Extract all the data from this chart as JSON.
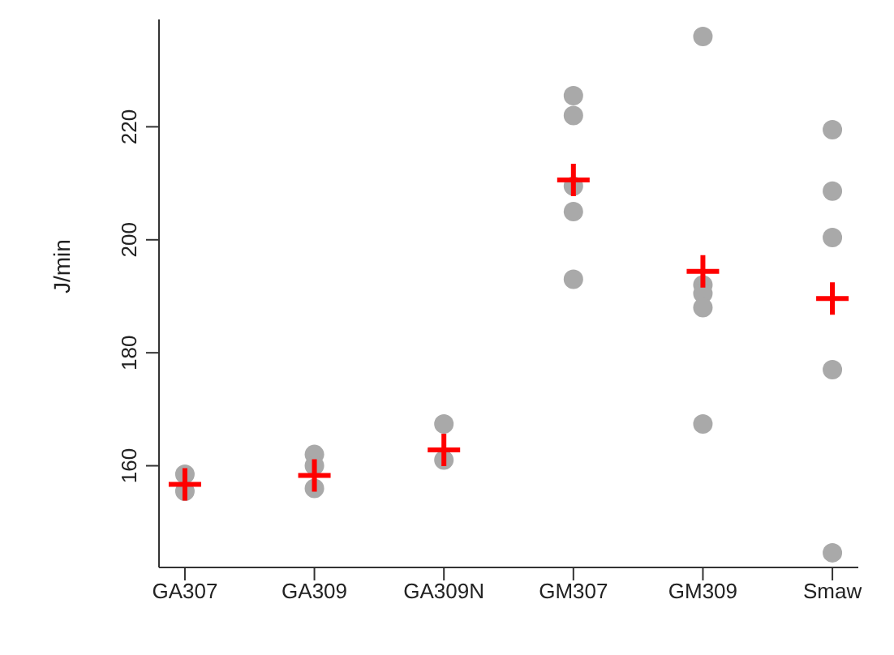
{
  "chart_data": {
    "type": "scatter",
    "ylabel": "J/min",
    "categories": [
      "GA307",
      "GA309",
      "GA309N",
      "GM307",
      "GM309",
      "Smaw"
    ],
    "ylim": [
      142,
      239
    ],
    "yticks": [
      160,
      180,
      200,
      220
    ],
    "grid": false,
    "legend": false,
    "series": [
      {
        "marker": "circle",
        "color": "#a9a9a9",
        "x": [
          "GA307",
          "GA307",
          "GA309",
          "GA309",
          "GA309",
          "GA309N",
          "GA309N",
          "GM307",
          "GM307",
          "GM307",
          "GM307",
          "GM307",
          "GM309",
          "GM309",
          "GM309",
          "GM309",
          "GM309",
          "Smaw",
          "Smaw",
          "Smaw",
          "Smaw",
          "Smaw"
        ],
        "values": [
          158.5,
          155.5,
          162,
          160,
          156,
          167.4,
          161,
          225.5,
          222,
          209.5,
          205,
          193,
          236,
          192,
          190.5,
          188,
          167.4,
          219.5,
          208.6,
          200.4,
          177,
          144.6
        ]
      },
      {
        "marker": "cross",
        "color": "#ff0000",
        "x": [
          "GA307",
          "GA309",
          "GA309N",
          "GM307",
          "GM309",
          "Smaw"
        ],
        "values": [
          156.7,
          158.3,
          162.8,
          210.6,
          194.4,
          189.6
        ]
      }
    ]
  }
}
